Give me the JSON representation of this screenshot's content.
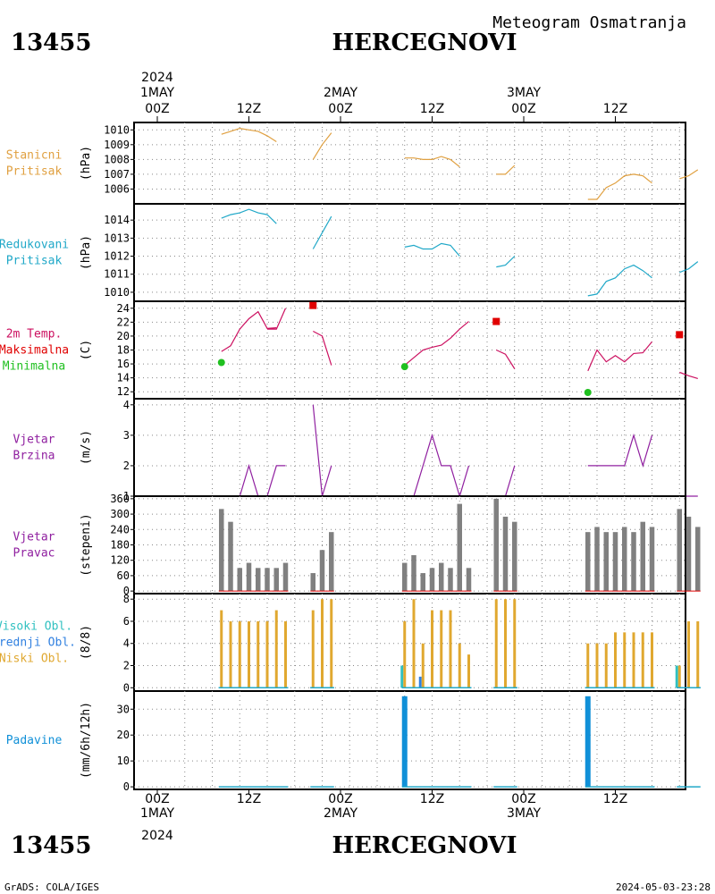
{
  "header": {
    "station_id": "13455",
    "station_name": "HERCEGNOVI",
    "product_title": "Meteogram Osmatranja",
    "year": "2024",
    "days": [
      "1MAY",
      "2MAY",
      "3MAY"
    ],
    "hour_labels": [
      "00Z",
      "12Z",
      "00Z",
      "12Z",
      "00Z",
      "12Z"
    ]
  },
  "footer": {
    "left": "GrADS: COLA/IGES",
    "right": "2024-05-03-23:28"
  },
  "colors": {
    "orange": "#e0a040",
    "cyan": "#20a8c8",
    "magenta": "#cc1060",
    "red": "#e00000",
    "green": "#20c020",
    "purple": "#9020a0",
    "gray": "#808080",
    "bar_gold": "#e0a830",
    "precip_blue": "#1090d8",
    "mid_cloud_blue": "#3080e0",
    "low_cloud_teal": "#30c0c0"
  },
  "chart_data": [
    {
      "type": "line",
      "panel": "station_pressure",
      "labels": [
        "Stanicni",
        "Pritisak"
      ],
      "ylabel": "(hPa)",
      "ylim": [
        1005,
        1010.5
      ],
      "yticks": [
        1006,
        1007,
        1008,
        1009,
        1010
      ],
      "series": [
        {
          "color": "orange",
          "segments": [
            {
              "x": [
                7,
                8,
                9,
                10,
                11,
                12,
                13
              ],
              "y": [
                1009.7,
                1009.9,
                1010.1,
                1010.0,
                1009.9,
                1009.6,
                1009.2
              ]
            },
            {
              "x": [
                17,
                18,
                19
              ],
              "y": [
                1008.0,
                1009.0,
                1009.8
              ]
            },
            {
              "x": [
                27,
                28,
                29,
                30,
                31,
                32,
                33
              ],
              "y": [
                1008.1,
                1008.1,
                1008.0,
                1008.0,
                1008.2,
                1008.0,
                1007.5
              ]
            },
            {
              "x": [
                37,
                38,
                39
              ],
              "y": [
                1007.0,
                1007.0,
                1007.6
              ]
            },
            {
              "x": [
                47,
                48,
                49,
                50,
                51,
                52,
                53
              ],
              "y": [
                1005.3,
                1005.3,
                1006.1,
                1006.4,
                1006.9,
                1007.0,
                1006.9
              ]
            },
            {
              "x": [
                53,
                54
              ],
              "y": [
                1006.9,
                1006.4
              ]
            },
            {
              "x": [
                57,
                58,
                59
              ],
              "y": [
                1006.7,
                1006.9,
                1007.3
              ]
            }
          ]
        }
      ]
    },
    {
      "type": "line",
      "panel": "reduced_pressure",
      "labels": [
        "Redukovani",
        "Pritisak"
      ],
      "ylabel": "(hPa)",
      "ylim": [
        1009.5,
        1014.9
      ],
      "yticks": [
        1010,
        1011,
        1012,
        1013,
        1014
      ],
      "series": [
        {
          "color": "cyan",
          "segments": [
            {
              "x": [
                7,
                8,
                9,
                10,
                11,
                12,
                13
              ],
              "y": [
                1014.1,
                1014.3,
                1014.4,
                1014.6,
                1014.4,
                1014.3,
                1013.8
              ]
            },
            {
              "x": [
                17,
                18,
                19
              ],
              "y": [
                1012.4,
                1013.3,
                1014.2
              ]
            },
            {
              "x": [
                27,
                28,
                29,
                30,
                31,
                32,
                33
              ],
              "y": [
                1012.5,
                1012.6,
                1012.4,
                1012.4,
                1012.7,
                1012.6,
                1012.0
              ]
            },
            {
              "x": [
                37,
                38,
                39
              ],
              "y": [
                1011.4,
                1011.5,
                1012.0
              ]
            },
            {
              "x": [
                47,
                48,
                49,
                50,
                51,
                52,
                53,
                54
              ],
              "y": [
                1009.8,
                1009.9,
                1010.6,
                1010.8,
                1011.3,
                1011.5,
                1011.2,
                1010.8
              ]
            },
            {
              "x": [
                57,
                58,
                59
              ],
              "y": [
                1011.1,
                1011.3,
                1011.7
              ]
            }
          ]
        }
      ]
    },
    {
      "type": "line",
      "panel": "temperature",
      "labels": [
        "2m Temp.",
        "Maksimalna",
        "Minimalna"
      ],
      "ylabel": "(C)",
      "ylim": [
        11,
        25
      ],
      "yticks": [
        12,
        14,
        16,
        18,
        20,
        22,
        24
      ],
      "series": [
        {
          "name": "2m Temp.",
          "color": "magenta",
          "segments": [
            {
              "x": [
                7,
                8,
                9,
                10,
                11,
                12,
                13
              ],
              "y": [
                17.8,
                18.6,
                21.0,
                22.5,
                23.5,
                21.1,
                21.2
              ]
            },
            {
              "x": [
                12,
                13,
                14
              ],
              "y": [
                21.0,
                21.0,
                24.0
              ]
            },
            {
              "x": [
                17,
                18,
                19
              ],
              "y": [
                20.7,
                20.0,
                15.8
              ]
            },
            {
              "x": [
                27,
                28,
                29,
                30,
                31,
                32,
                33
              ],
              "y": [
                15.8,
                16.9,
                18.0,
                18.4,
                18.7,
                19.7,
                21.0
              ]
            },
            {
              "x": [
                33,
                34
              ],
              "y": [
                21.0,
                22.1
              ]
            },
            {
              "x": [
                37,
                38,
                39
              ],
              "y": [
                18.0,
                17.4,
                15.3
              ]
            },
            {
              "x": [
                47,
                48,
                49,
                50,
                51,
                52,
                53,
                54
              ],
              "y": [
                15.0,
                18.0,
                16.3,
                17.2,
                16.3,
                17.5,
                17.6,
                19.2
              ]
            },
            {
              "x": [
                57,
                58,
                59
              ],
              "y": [
                14.8,
                14.3,
                13.9
              ]
            }
          ]
        }
      ],
      "max_temps": [
        {
          "x": 17,
          "y": 24.4
        },
        {
          "x": 37,
          "y": 22.1
        },
        {
          "x": 57,
          "y": 20.2
        }
      ],
      "min_temps": [
        {
          "x": 7,
          "y": 16.2
        },
        {
          "x": 27,
          "y": 15.6
        },
        {
          "x": 47,
          "y": 11.9
        }
      ]
    },
    {
      "type": "line",
      "panel": "wind_speed",
      "labels": [
        "Vjetar",
        "Brzina"
      ],
      "ylabel": "(m/s)",
      "ylim": [
        1,
        4.2
      ],
      "yticks": [
        1,
        2,
        3,
        4
      ],
      "series": [
        {
          "color": "purple",
          "segments": [
            {
              "x": [
                7,
                8,
                9,
                10,
                11,
                12,
                13,
                14
              ],
              "y": [
                1,
                1,
                1,
                2,
                1,
                1,
                2,
                2
              ]
            },
            {
              "x": [
                17,
                18,
                19
              ],
              "y": [
                4,
                1,
                2
              ]
            },
            {
              "x": [
                27,
                28,
                29,
                30,
                31,
                32,
                33,
                34
              ],
              "y": [
                1,
                1,
                2,
                3,
                2,
                2,
                1,
                2
              ]
            },
            {
              "x": [
                37,
                38,
                39
              ],
              "y": [
                1,
                1,
                2
              ]
            },
            {
              "x": [
                47,
                48,
                49,
                50,
                51,
                52,
                53,
                54
              ],
              "y": [
                2,
                2,
                2,
                2,
                2,
                3,
                2,
                3
              ]
            },
            {
              "x": [
                57,
                58,
                59
              ],
              "y": [
                1,
                1,
                1
              ]
            }
          ]
        }
      ]
    },
    {
      "type": "bar",
      "panel": "wind_direction",
      "labels": [
        "Vjetar",
        "Pravac"
      ],
      "ylabel": "(stepeni)",
      "ylim": [
        -10,
        370
      ],
      "yticks": [
        0,
        60,
        120,
        180,
        240,
        300,
        360
      ],
      "series": [
        {
          "color": "gray",
          "bars": [
            [
              7,
              320
            ],
            [
              8,
              270
            ],
            [
              9,
              90
            ],
            [
              10,
              110
            ],
            [
              11,
              90
            ],
            [
              12,
              90
            ],
            [
              13,
              90
            ],
            [
              14,
              110
            ],
            [
              17,
              70
            ],
            [
              18,
              160
            ],
            [
              19,
              230
            ],
            [
              27,
              110
            ],
            [
              28,
              140
            ],
            [
              29,
              70
            ],
            [
              30,
              90
            ],
            [
              31,
              110
            ],
            [
              32,
              90
            ],
            [
              33,
              340
            ],
            [
              34,
              90
            ],
            [
              37,
              360
            ],
            [
              38,
              290
            ],
            [
              39,
              270
            ],
            [
              47,
              230
            ],
            [
              48,
              250
            ],
            [
              49,
              230
            ],
            [
              50,
              230
            ],
            [
              51,
              250
            ],
            [
              52,
              230
            ],
            [
              53,
              270
            ],
            [
              54,
              250
            ],
            [
              57,
              320
            ],
            [
              58,
              290
            ],
            [
              59,
              250
            ]
          ]
        }
      ]
    },
    {
      "type": "bar",
      "panel": "cloud_cover",
      "labels": [
        "Visoki Obl.",
        "Srednji Obl.",
        "Niski Obl."
      ],
      "ylabel": "(8/8)",
      "ylim": [
        -0.3,
        8.5
      ],
      "yticks": [
        0,
        2,
        4,
        6,
        8
      ],
      "series": [
        {
          "name": "Visoki Obl.",
          "color": "low_cloud_teal",
          "bars": [
            [
              27,
              2
            ],
            [
              57,
              2
            ]
          ]
        },
        {
          "name": "Srednji Obl.",
          "color": "mid_cloud_blue",
          "bars": [
            [
              29,
              1
            ]
          ]
        },
        {
          "name": "Niski Obl.",
          "color": "bar_gold",
          "bars": [
            [
              7,
              7
            ],
            [
              8,
              6
            ],
            [
              9,
              6
            ],
            [
              10,
              6
            ],
            [
              11,
              6
            ],
            [
              12,
              6
            ],
            [
              13,
              7
            ],
            [
              14,
              6
            ],
            [
              17,
              7
            ],
            [
              18,
              8
            ],
            [
              19,
              8
            ],
            [
              27,
              6
            ],
            [
              28,
              8
            ],
            [
              29,
              4
            ],
            [
              30,
              7
            ],
            [
              31,
              7
            ],
            [
              32,
              7
            ],
            [
              33,
              4
            ],
            [
              34,
              3
            ],
            [
              37,
              8
            ],
            [
              38,
              8
            ],
            [
              39,
              8
            ],
            [
              47,
              4
            ],
            [
              48,
              4
            ],
            [
              49,
              4
            ],
            [
              50,
              5
            ],
            [
              51,
              5
            ],
            [
              52,
              5
            ],
            [
              53,
              5
            ],
            [
              54,
              5
            ],
            [
              57,
              2
            ],
            [
              58,
              6
            ],
            [
              59,
              6
            ]
          ]
        }
      ]
    },
    {
      "type": "bar",
      "panel": "precipitation",
      "labels": [
        "Padavine"
      ],
      "ylabel": "(mm/6h/12h)",
      "ylim": [
        -1,
        37
      ],
      "yticks": [
        0,
        10,
        20,
        30
      ],
      "series": [
        {
          "color": "precip_blue",
          "bars": [
            [
              27,
              35
            ],
            [
              47,
              35
            ]
          ]
        }
      ]
    }
  ]
}
